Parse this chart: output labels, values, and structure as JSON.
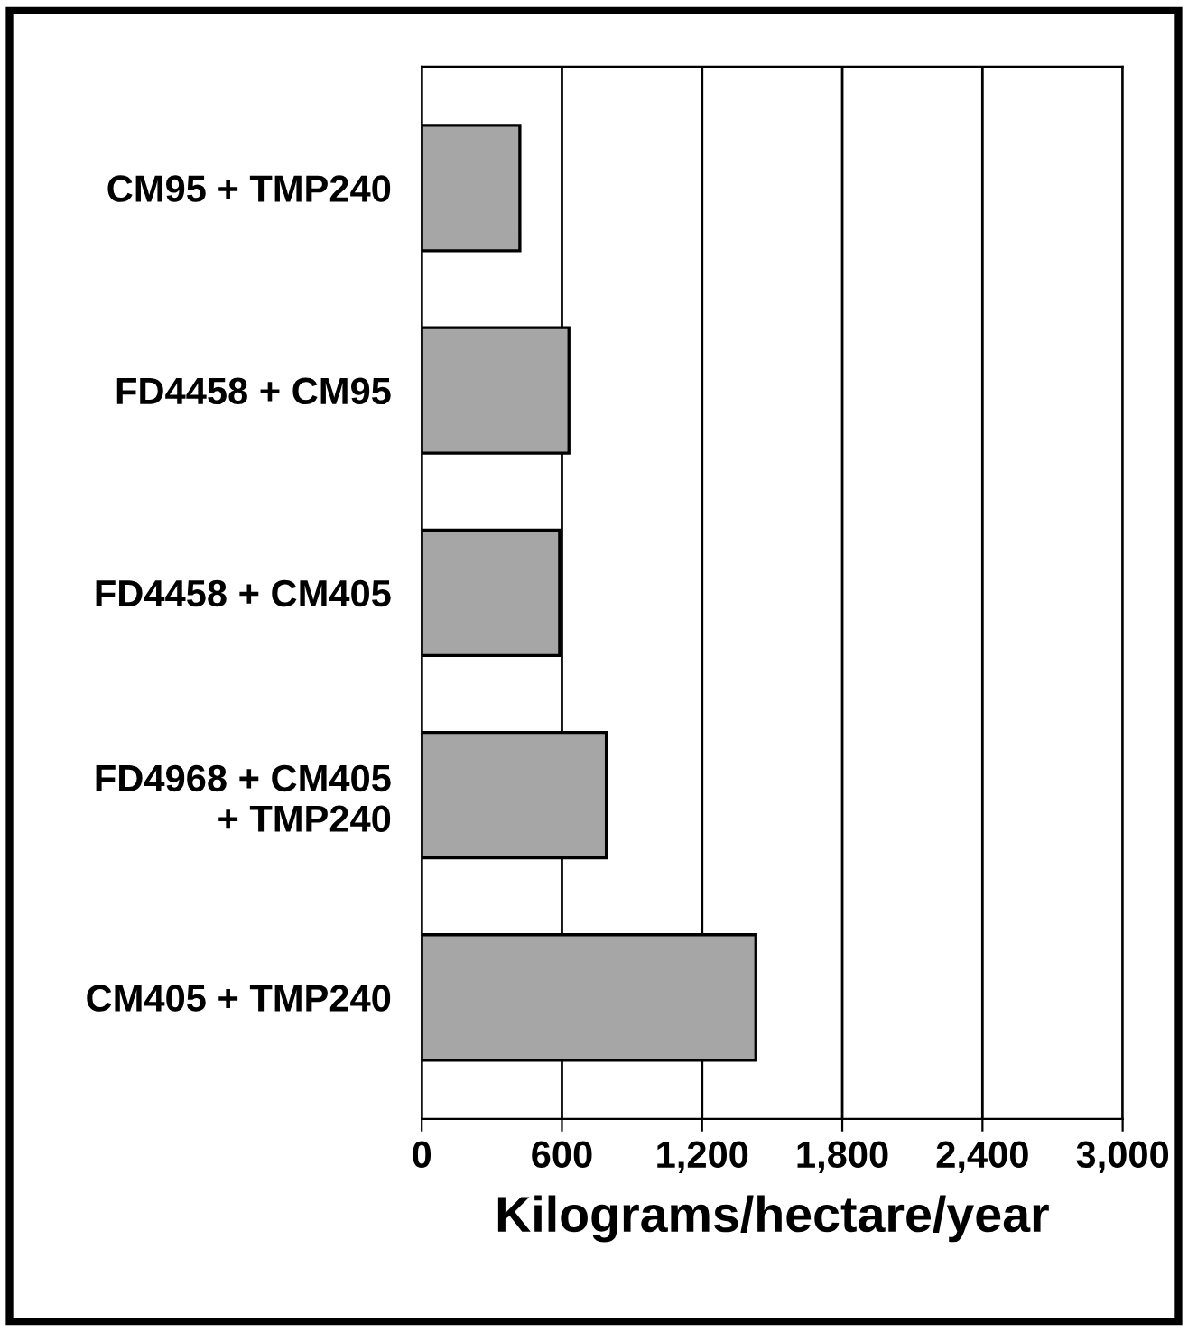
{
  "chart_data": {
    "type": "bar",
    "orientation": "horizontal",
    "xlabel": "Kilograms/hectare/year",
    "categories": [
      "CM95 + TMP240",
      "FD4458 + CM95",
      "FD4458 + CM405",
      "FD4968 + CM405\n+ TMP240",
      "CM405 + TMP240"
    ],
    "values": [
      420,
      630,
      590,
      790,
      1430
    ],
    "color": "#a6a6a6",
    "xlim": [
      0,
      3000
    ],
    "xticks": [
      0,
      600,
      {
        "value": 1200,
        "label": "1,200"
      },
      {
        "value": 1800,
        "label": "1,800"
      },
      {
        "value": 2400,
        "label": "2,400"
      },
      {
        "value": 3000,
        "label": "3,000"
      }
    ],
    "grid": "x"
  }
}
